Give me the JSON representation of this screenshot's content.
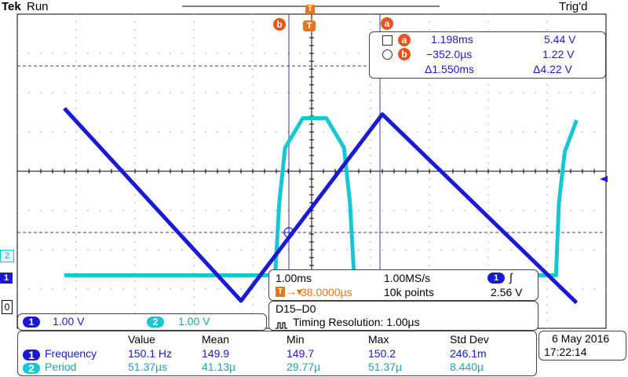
{
  "header": {
    "brand": "Tek",
    "status": "Run",
    "trigger_state": "Trig'd",
    "trigger_marker": "T"
  },
  "cursors": {
    "a_label": "a",
    "b_label": "b",
    "a_time": "1.198ms",
    "a_volt": "5.44 V",
    "b_time": "−352.0µs",
    "b_volt": "1.22 V",
    "delta_time": "Δ1.550ms",
    "delta_volt": "Δ4.22 V"
  },
  "horizontal": {
    "scale": "1.00ms",
    "sample_rate": "1.00MS/s",
    "trigger_pos": "38.0000µs",
    "record": "10k points",
    "trigger_channel": "1",
    "trigger_slope_icon": "rising-edge-icon",
    "trigger_level": "2.56 V"
  },
  "channels": [
    {
      "id": "1",
      "scale": "1.00 V",
      "color": "#1a1ad6"
    },
    {
      "id": "2",
      "scale": "1.00 V",
      "color": "#17c6d4"
    }
  ],
  "digital": {
    "label": "D15–D0",
    "timing": "Timing Resolution: 1.00µs"
  },
  "ground_markers": [
    "2",
    "1",
    "0"
  ],
  "measurements": {
    "headers": [
      "Value",
      "Mean",
      "Min",
      "Max",
      "Std Dev"
    ],
    "rows": [
      {
        "ch": "1",
        "name": "Frequency",
        "value": "150.1 Hz",
        "mean": "149.9",
        "min": "149.7",
        "max": "150.2",
        "std": "246.1m"
      },
      {
        "ch": "2",
        "name": "Period",
        "value": "51.37µs",
        "mean": "41.13µ",
        "min": "29.77µ",
        "max": "51.37µ",
        "std": "8.440µ"
      }
    ]
  },
  "clock": {
    "date": "6 May 2016",
    "time": "17:22:14"
  },
  "colors": {
    "ch1": "#1a1ad6",
    "ch2": "#17c6d4",
    "cursor_badge": "#e8541c",
    "trigger": "#e8741c",
    "graticule": "#3a3aa8"
  },
  "chart_data": {
    "type": "line",
    "series": [
      {
        "x": [
          -4.2,
          -1.2,
          1.2,
          4.5
        ],
        "y": [
          5.6,
          0.7,
          5.45,
          0.65
        ]
      },
      {
        "x": [
          -4.2,
          -0.62,
          -0.55,
          -0.45,
          -0.15,
          0.25,
          0.55,
          0.65,
          0.72,
          4.15,
          4.2,
          4.3,
          4.5
        ],
        "y": [
          1.35,
          1.35,
          3.2,
          4.6,
          5.35,
          5.35,
          4.6,
          3.2,
          1.35,
          1.35,
          3.2,
          4.5,
          5.3
        ]
      }
    ],
    "ylim": [
      0,
      8
    ],
    "grid": true
  }
}
